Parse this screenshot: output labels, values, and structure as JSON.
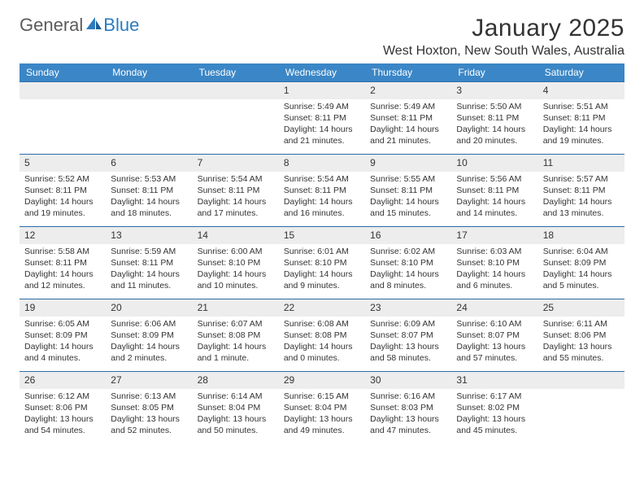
{
  "logo": {
    "left": "General",
    "right": "Blue"
  },
  "title": "January 2025",
  "location": "West Hoxton, New South Wales, Australia",
  "colors": {
    "header_bg": "#3b86c6",
    "header_text": "#ffffff",
    "rule": "#2b6ca8",
    "daynum_bg": "#ededed",
    "text": "#333333",
    "logo_gray": "#5b5b5b",
    "logo_blue": "#2b7bbf"
  },
  "daynames": [
    "Sunday",
    "Monday",
    "Tuesday",
    "Wednesday",
    "Thursday",
    "Friday",
    "Saturday"
  ],
  "weeks": [
    [
      {
        "blank": true
      },
      {
        "blank": true
      },
      {
        "blank": true
      },
      {
        "n": "1",
        "sunrise": "5:49 AM",
        "sunset": "8:11 PM",
        "daylight": "14 hours and 21 minutes."
      },
      {
        "n": "2",
        "sunrise": "5:49 AM",
        "sunset": "8:11 PM",
        "daylight": "14 hours and 21 minutes."
      },
      {
        "n": "3",
        "sunrise": "5:50 AM",
        "sunset": "8:11 PM",
        "daylight": "14 hours and 20 minutes."
      },
      {
        "n": "4",
        "sunrise": "5:51 AM",
        "sunset": "8:11 PM",
        "daylight": "14 hours and 19 minutes."
      }
    ],
    [
      {
        "n": "5",
        "sunrise": "5:52 AM",
        "sunset": "8:11 PM",
        "daylight": "14 hours and 19 minutes."
      },
      {
        "n": "6",
        "sunrise": "5:53 AM",
        "sunset": "8:11 PM",
        "daylight": "14 hours and 18 minutes."
      },
      {
        "n": "7",
        "sunrise": "5:54 AM",
        "sunset": "8:11 PM",
        "daylight": "14 hours and 17 minutes."
      },
      {
        "n": "8",
        "sunrise": "5:54 AM",
        "sunset": "8:11 PM",
        "daylight": "14 hours and 16 minutes."
      },
      {
        "n": "9",
        "sunrise": "5:55 AM",
        "sunset": "8:11 PM",
        "daylight": "14 hours and 15 minutes."
      },
      {
        "n": "10",
        "sunrise": "5:56 AM",
        "sunset": "8:11 PM",
        "daylight": "14 hours and 14 minutes."
      },
      {
        "n": "11",
        "sunrise": "5:57 AM",
        "sunset": "8:11 PM",
        "daylight": "14 hours and 13 minutes."
      }
    ],
    [
      {
        "n": "12",
        "sunrise": "5:58 AM",
        "sunset": "8:11 PM",
        "daylight": "14 hours and 12 minutes."
      },
      {
        "n": "13",
        "sunrise": "5:59 AM",
        "sunset": "8:11 PM",
        "daylight": "14 hours and 11 minutes."
      },
      {
        "n": "14",
        "sunrise": "6:00 AM",
        "sunset": "8:10 PM",
        "daylight": "14 hours and 10 minutes."
      },
      {
        "n": "15",
        "sunrise": "6:01 AM",
        "sunset": "8:10 PM",
        "daylight": "14 hours and 9 minutes."
      },
      {
        "n": "16",
        "sunrise": "6:02 AM",
        "sunset": "8:10 PM",
        "daylight": "14 hours and 8 minutes."
      },
      {
        "n": "17",
        "sunrise": "6:03 AM",
        "sunset": "8:10 PM",
        "daylight": "14 hours and 6 minutes."
      },
      {
        "n": "18",
        "sunrise": "6:04 AM",
        "sunset": "8:09 PM",
        "daylight": "14 hours and 5 minutes."
      }
    ],
    [
      {
        "n": "19",
        "sunrise": "6:05 AM",
        "sunset": "8:09 PM",
        "daylight": "14 hours and 4 minutes."
      },
      {
        "n": "20",
        "sunrise": "6:06 AM",
        "sunset": "8:09 PM",
        "daylight": "14 hours and 2 minutes."
      },
      {
        "n": "21",
        "sunrise": "6:07 AM",
        "sunset": "8:08 PM",
        "daylight": "14 hours and 1 minute."
      },
      {
        "n": "22",
        "sunrise": "6:08 AM",
        "sunset": "8:08 PM",
        "daylight": "14 hours and 0 minutes."
      },
      {
        "n": "23",
        "sunrise": "6:09 AM",
        "sunset": "8:07 PM",
        "daylight": "13 hours and 58 minutes."
      },
      {
        "n": "24",
        "sunrise": "6:10 AM",
        "sunset": "8:07 PM",
        "daylight": "13 hours and 57 minutes."
      },
      {
        "n": "25",
        "sunrise": "6:11 AM",
        "sunset": "8:06 PM",
        "daylight": "13 hours and 55 minutes."
      }
    ],
    [
      {
        "n": "26",
        "sunrise": "6:12 AM",
        "sunset": "8:06 PM",
        "daylight": "13 hours and 54 minutes."
      },
      {
        "n": "27",
        "sunrise": "6:13 AM",
        "sunset": "8:05 PM",
        "daylight": "13 hours and 52 minutes."
      },
      {
        "n": "28",
        "sunrise": "6:14 AM",
        "sunset": "8:04 PM",
        "daylight": "13 hours and 50 minutes."
      },
      {
        "n": "29",
        "sunrise": "6:15 AM",
        "sunset": "8:04 PM",
        "daylight": "13 hours and 49 minutes."
      },
      {
        "n": "30",
        "sunrise": "6:16 AM",
        "sunset": "8:03 PM",
        "daylight": "13 hours and 47 minutes."
      },
      {
        "n": "31",
        "sunrise": "6:17 AM",
        "sunset": "8:02 PM",
        "daylight": "13 hours and 45 minutes."
      },
      {
        "blank": true
      }
    ]
  ],
  "labels": {
    "sunrise": "Sunrise:",
    "sunset": "Sunset:",
    "daylight": "Daylight:"
  }
}
